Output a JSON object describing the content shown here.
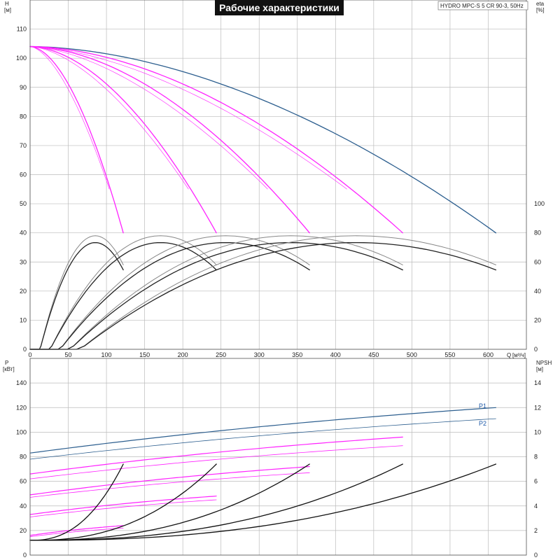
{
  "header": {
    "title": "Рабочие характеристики",
    "model": "HYDRO MPC-S 5 CR 90-3, 50Hz"
  },
  "colors": {
    "grid": "#bbbbbb",
    "frame": "#555555",
    "pump_blue": "#2d5f8f",
    "magenta": "#ff22ff",
    "efficiency": "#222222",
    "efficiency_light": "#888888",
    "npsh": "#111111"
  },
  "chart_data": [
    {
      "type": "line",
      "panel": "top",
      "xlabel": "Q",
      "xunit": "[м³/ч]",
      "xlim": [
        0,
        650
      ],
      "x_ticks": [
        "0",
        "50",
        "100",
        "150",
        "200",
        "250",
        "300",
        "350",
        "400",
        "450",
        "500",
        "550",
        "600"
      ],
      "left_axis": {
        "label": "H",
        "unit": "[м]",
        "ylim": [
          0,
          120
        ],
        "ticks": [
          "0",
          "10",
          "20",
          "30",
          "40",
          "50",
          "60",
          "70",
          "80",
          "90",
          "100",
          "110"
        ]
      },
      "right_axis": {
        "label": "eta",
        "unit": "[%]",
        "ylim": [
          0,
          240
        ],
        "ticks": [
          "0",
          "20",
          "40",
          "60",
          "80",
          "100"
        ]
      },
      "head_curves": [
        {
          "pumps": 5,
          "color": "blue",
          "q_max": 610,
          "h0": 104,
          "h_end": 40
        },
        {
          "pumps": 4,
          "color": "magenta",
          "q_max": 488,
          "h0": 104,
          "h_end": 40
        },
        {
          "pumps": 3,
          "color": "magenta",
          "q_max": 366,
          "h0": 104,
          "h_end": 40
        },
        {
          "pumps": 2,
          "color": "magenta",
          "q_max": 244,
          "h0": 104,
          "h_end": 40
        },
        {
          "pumps": 1,
          "color": "magenta",
          "q_max": 122,
          "h0": 104,
          "h_end": 40
        }
      ],
      "efficiency_curves": [
        {
          "pumps": 1,
          "q_max": 122,
          "eta_peak": 78,
          "eta_end": 58
        },
        {
          "pumps": 2,
          "q_max": 244,
          "eta_peak": 78,
          "eta_end": 58
        },
        {
          "pumps": 3,
          "q_max": 366,
          "eta_peak": 78,
          "eta_end": 58
        },
        {
          "pumps": 4,
          "q_max": 488,
          "eta_peak": 78,
          "eta_end": 58
        },
        {
          "pumps": 5,
          "q_max": 610,
          "eta_peak": 78,
          "eta_end": 58
        }
      ]
    },
    {
      "type": "line",
      "panel": "bottom",
      "xlim": [
        0,
        650
      ],
      "left_axis": {
        "label": "P",
        "unit": "[кВт]",
        "ylim": [
          0,
          160
        ],
        "ticks": [
          "0",
          "20",
          "40",
          "60",
          "80",
          "100",
          "120",
          "140"
        ]
      },
      "right_axis": {
        "label": "NPSH",
        "unit": "[м]",
        "ylim": [
          0,
          16
        ],
        "ticks": [
          "0",
          "2",
          "4",
          "6",
          "8",
          "10",
          "12",
          "14"
        ]
      },
      "series_labels": [
        "P1",
        "P2"
      ],
      "power_curves": [
        {
          "pumps": 5,
          "color": "blue",
          "q_max": 610,
          "p1_start": 83,
          "p1_end": 120,
          "p2_start": 78,
          "p2_end": 111
        },
        {
          "pumps": 4,
          "color": "magenta",
          "q_max": 488,
          "p1_start": 66,
          "p1_end": 96,
          "p2_start": 62,
          "p2_end": 89
        },
        {
          "pumps": 3,
          "color": "magenta",
          "q_max": 366,
          "p1_start": 49,
          "p1_end": 72,
          "p2_start": 47,
          "p2_end": 67
        },
        {
          "pumps": 2,
          "color": "magenta",
          "q_max": 244,
          "p1_start": 33,
          "p1_end": 48,
          "p2_start": 31,
          "p2_end": 45
        },
        {
          "pumps": 1,
          "color": "magenta",
          "q_max": 122,
          "p1_start": 16,
          "p1_end": 24,
          "p2_start": 15,
          "p2_end": 22
        }
      ],
      "npsh_curves": [
        {
          "pumps": 1,
          "q_max": 122,
          "npsh_start": 1.2,
          "npsh_end": 7.4
        },
        {
          "pumps": 2,
          "q_max": 244,
          "npsh_start": 1.2,
          "npsh_end": 7.4
        },
        {
          "pumps": 3,
          "q_max": 366,
          "npsh_start": 1.2,
          "npsh_end": 7.4
        },
        {
          "pumps": 4,
          "q_max": 488,
          "npsh_start": 1.2,
          "npsh_end": 7.4
        },
        {
          "pumps": 5,
          "q_max": 610,
          "npsh_start": 1.2,
          "npsh_end": 7.4
        }
      ]
    }
  ]
}
